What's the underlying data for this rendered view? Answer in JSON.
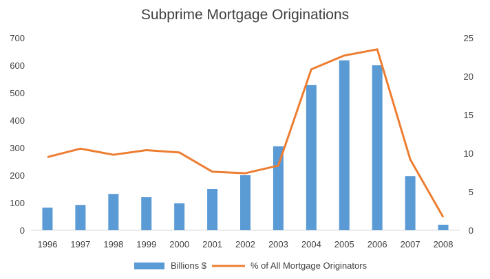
{
  "chart_data": {
    "type": "bar",
    "title": "Subprime Mortgage Originations",
    "categories": [
      "1996",
      "1997",
      "1998",
      "1999",
      "2000",
      "2001",
      "2002",
      "2003",
      "2004",
      "2005",
      "2006",
      "2007",
      "2008"
    ],
    "series": [
      {
        "name": "Billions $",
        "type": "bar",
        "axis": "left",
        "color": "#5B9BD5",
        "values": [
          82,
          92,
          132,
          120,
          98,
          150,
          200,
          305,
          528,
          618,
          600,
          197,
          20
        ]
      },
      {
        "name": "%  of All Mortgage Originators",
        "type": "line",
        "axis": "right",
        "color": "#ED7D31",
        "values": [
          9.5,
          10.6,
          9.8,
          10.4,
          10.1,
          7.6,
          7.4,
          8.4,
          20.9,
          22.7,
          23.5,
          9.2,
          1.7
        ]
      }
    ],
    "y_left": {
      "ylim": [
        0,
        700
      ],
      "ticks": [
        "0",
        "100",
        "200",
        "300",
        "400",
        "500",
        "600",
        "700"
      ]
    },
    "y_right": {
      "ylim": [
        0,
        25
      ],
      "ticks": [
        "0",
        "5",
        "10",
        "15",
        "20",
        "25"
      ]
    },
    "grid": false,
    "legend": "bottom"
  }
}
